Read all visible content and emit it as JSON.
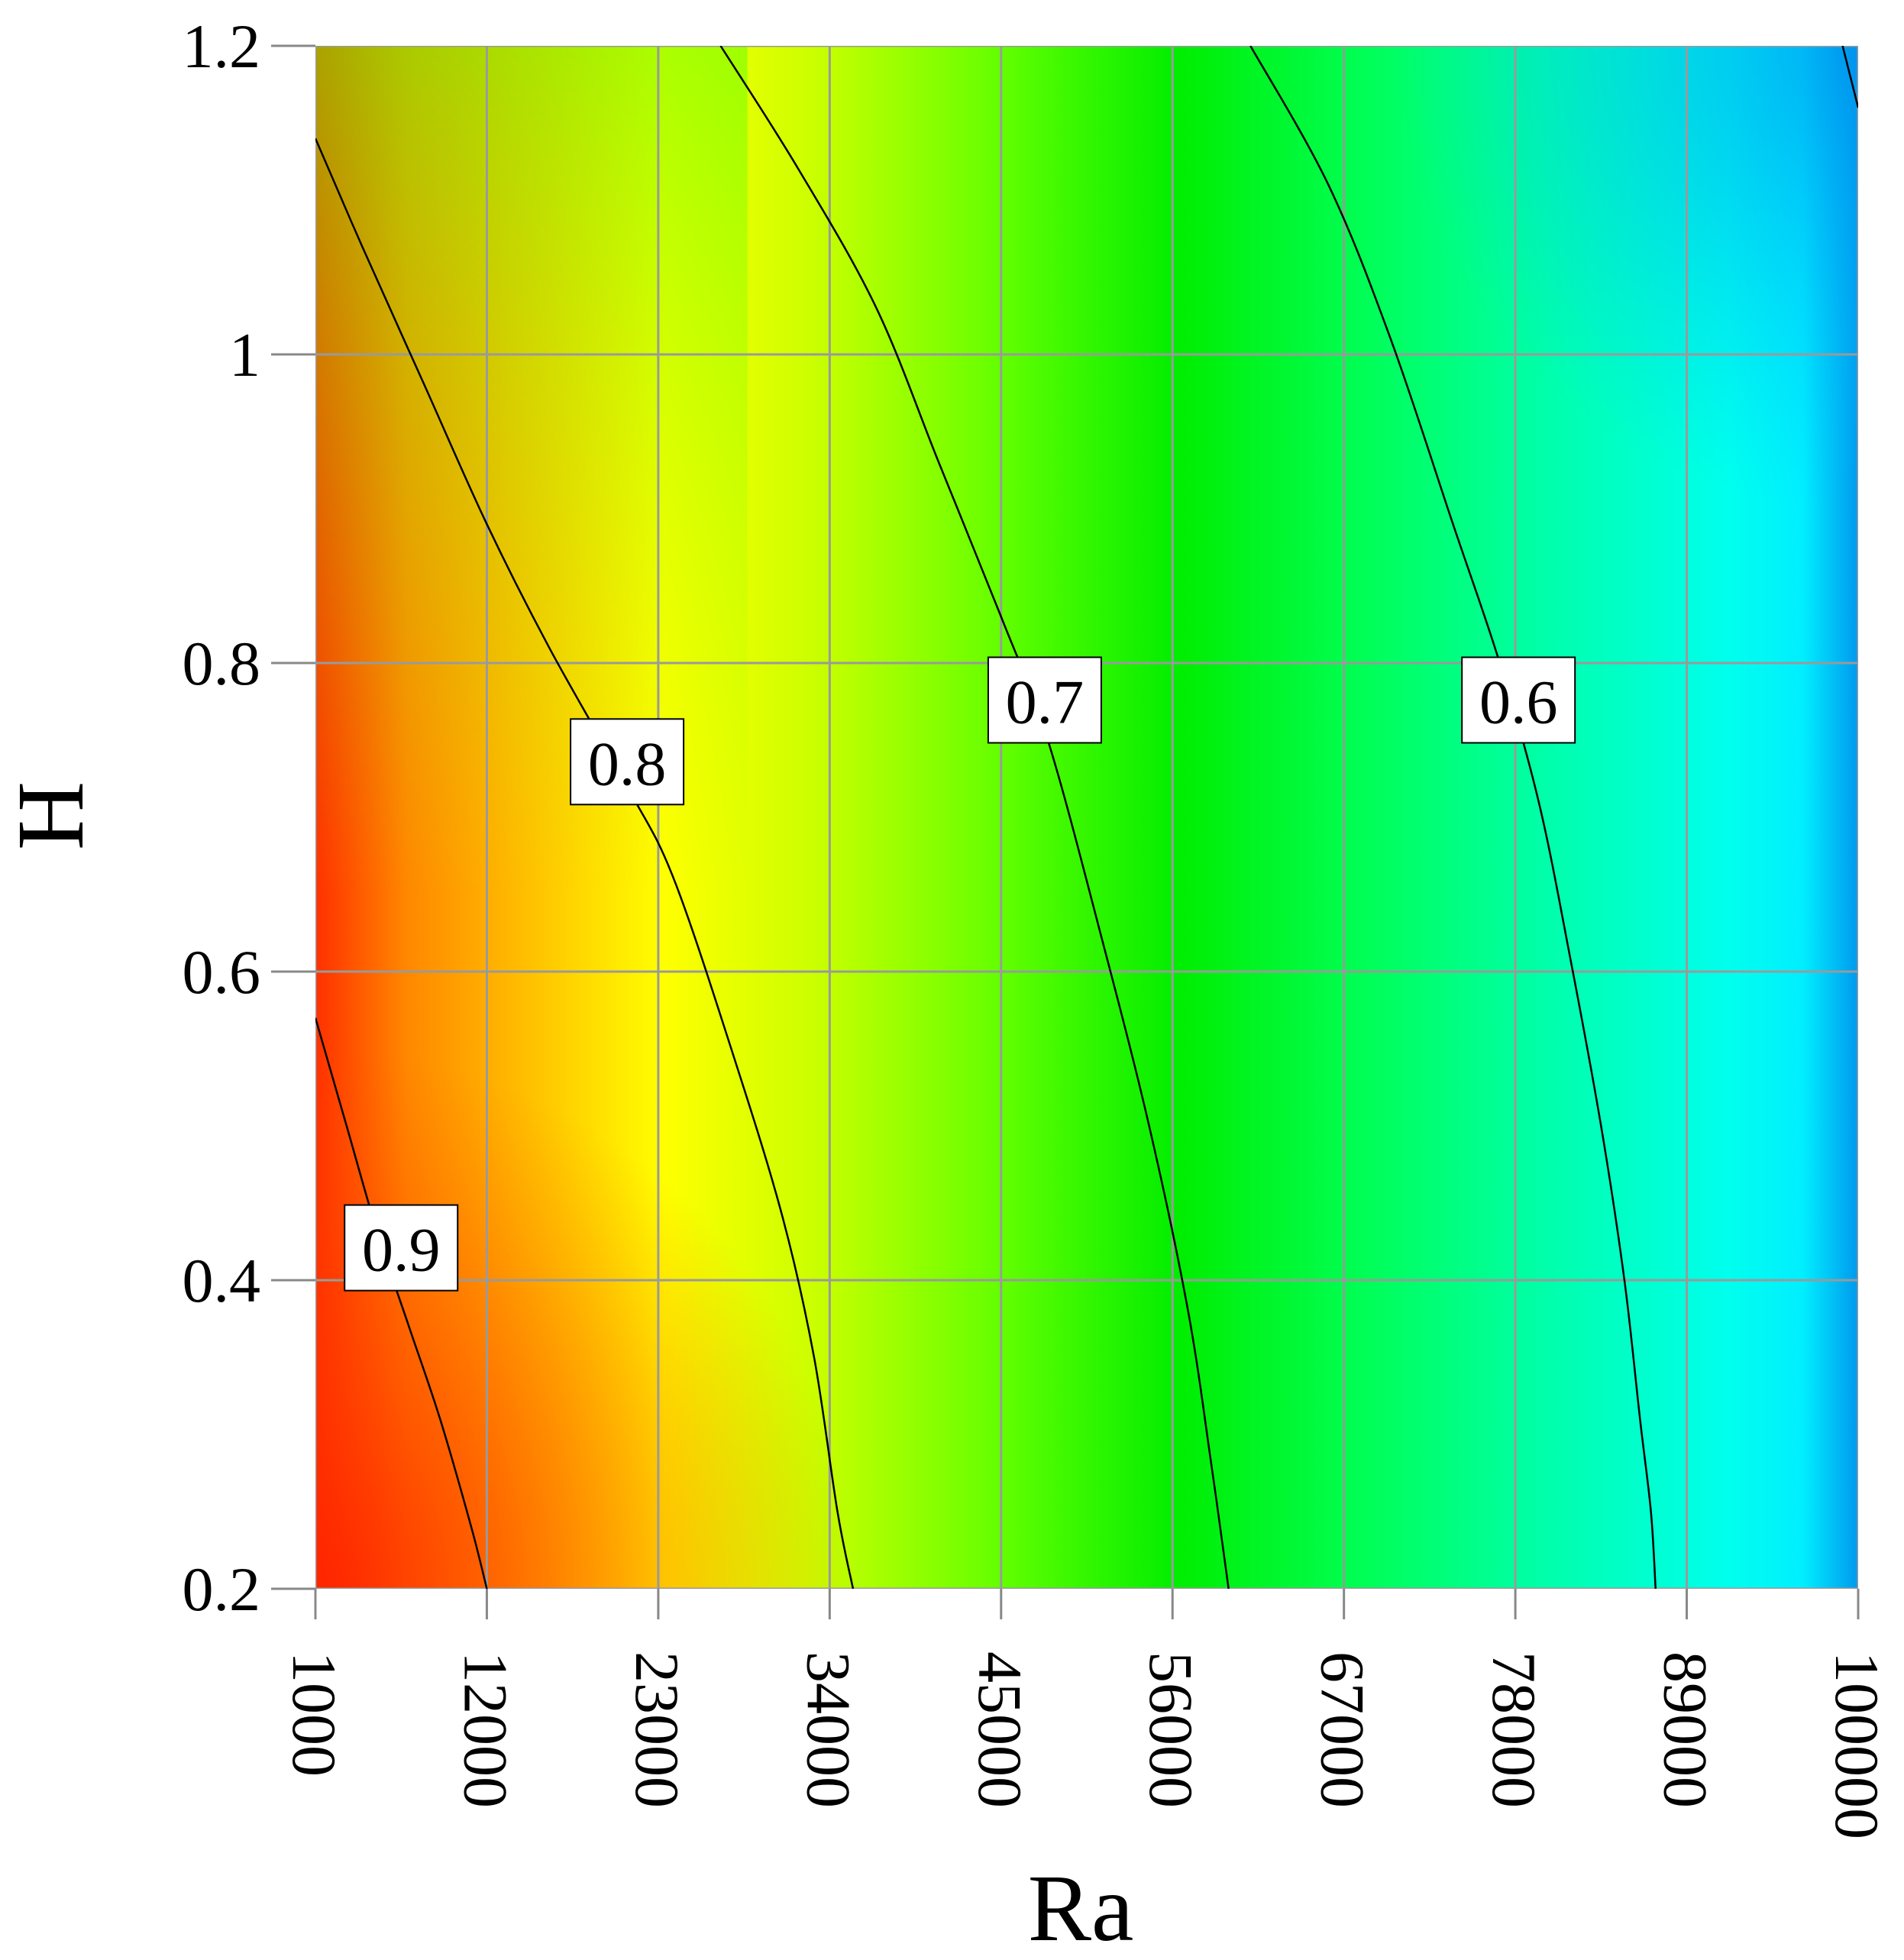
{
  "chart_data": {
    "type": "heatmap",
    "subtype": "filled contour plot with labeled contour lines",
    "xlabel": "Ra",
    "ylabel": "H",
    "xlim": [
      1000,
      100000
    ],
    "ylim": [
      0.2,
      1.2
    ],
    "x_ticks": [
      1000,
      12000,
      23000,
      34000,
      45000,
      56000,
      67000,
      78000,
      89000,
      100000
    ],
    "x_tick_labels": [
      "1000",
      "12000",
      "23000",
      "34000",
      "45000",
      "56000",
      "67000",
      "78000",
      "89000",
      "100000"
    ],
    "y_ticks": [
      0.2,
      0.4,
      0.6,
      0.8,
      1.0,
      1.2
    ],
    "y_tick_labels": [
      "0.2",
      "0.4",
      "0.6",
      "0.8",
      "1",
      "1.2"
    ],
    "grid": true,
    "x_tick_label_rotation": "vertical, reading top to bottom",
    "colormap": "jet-like: red (high) – orange – yellow – green – cyan – blue (low)",
    "color_stops": [
      {
        "value": 0.96,
        "color": "#ff3000"
      },
      {
        "value": 0.91,
        "color": "#ff8800"
      },
      {
        "value": 0.87,
        "color": "#ffcc00"
      },
      {
        "value": 0.84,
        "color": "#ffff00"
      },
      {
        "value": 0.8,
        "color": "#ccff00"
      },
      {
        "value": 0.75,
        "color": "#66ff00"
      },
      {
        "value": 0.7,
        "color": "#00ee00"
      },
      {
        "value": 0.65,
        "color": "#00ff55"
      },
      {
        "value": 0.6,
        "color": "#00ffaa"
      },
      {
        "value": 0.55,
        "color": "#00ffee"
      },
      {
        "value": 0.53,
        "color": "#00eeff"
      },
      {
        "value": 0.5,
        "color": "#0099ee"
      }
    ],
    "contours": [
      {
        "level": 0.9,
        "label": "0.9",
        "label_at": {
          "x": 6500,
          "y": 0.42
        },
        "points": [
          [
            1000,
            0.57
          ],
          [
            3000,
            0.5
          ],
          [
            5000,
            0.43
          ],
          [
            7000,
            0.37
          ],
          [
            9000,
            0.31
          ],
          [
            11000,
            0.24
          ],
          [
            12000,
            0.2
          ]
        ]
      },
      {
        "level": 0.8,
        "label": "0.8",
        "label_at": {
          "x": 21000,
          "y": 0.735
        },
        "points": [
          [
            1000,
            1.14
          ],
          [
            4000,
            1.07
          ],
          [
            8000,
            0.98
          ],
          [
            12000,
            0.89
          ],
          [
            16000,
            0.81
          ],
          [
            21000,
            0.72
          ],
          [
            24000,
            0.66
          ],
          [
            28000,
            0.54
          ],
          [
            31000,
            0.44
          ],
          [
            33000,
            0.35
          ],
          [
            34500,
            0.25
          ],
          [
            35500,
            0.2
          ]
        ]
      },
      {
        "level": 0.7,
        "label": "0.7",
        "label_at": {
          "x": 47800,
          "y": 0.775
        },
        "points": [
          [
            27000,
            1.2
          ],
          [
            32000,
            1.12
          ],
          [
            37000,
            1.03
          ],
          [
            41000,
            0.93
          ],
          [
            45000,
            0.83
          ],
          [
            48000,
            0.75
          ],
          [
            51500,
            0.62
          ],
          [
            54500,
            0.5
          ],
          [
            57000,
            0.38
          ],
          [
            58500,
            0.28
          ],
          [
            59600,
            0.2
          ]
        ]
      },
      {
        "level": 0.6,
        "label": "0.6",
        "label_at": {
          "x": 78200,
          "y": 0.775
        },
        "points": [
          [
            61000,
            1.2
          ],
          [
            66000,
            1.11
          ],
          [
            70000,
            1.01
          ],
          [
            74000,
            0.89
          ],
          [
            77000,
            0.8
          ],
          [
            79500,
            0.71
          ],
          [
            81500,
            0.61
          ],
          [
            83500,
            0.5
          ],
          [
            85000,
            0.4
          ],
          [
            86000,
            0.31
          ],
          [
            86700,
            0.25
          ],
          [
            87000,
            0.2
          ]
        ]
      },
      {
        "level": 0.5,
        "label": "",
        "points": [
          [
            99000,
            1.2
          ],
          [
            100000,
            1.16
          ]
        ]
      }
    ]
  }
}
